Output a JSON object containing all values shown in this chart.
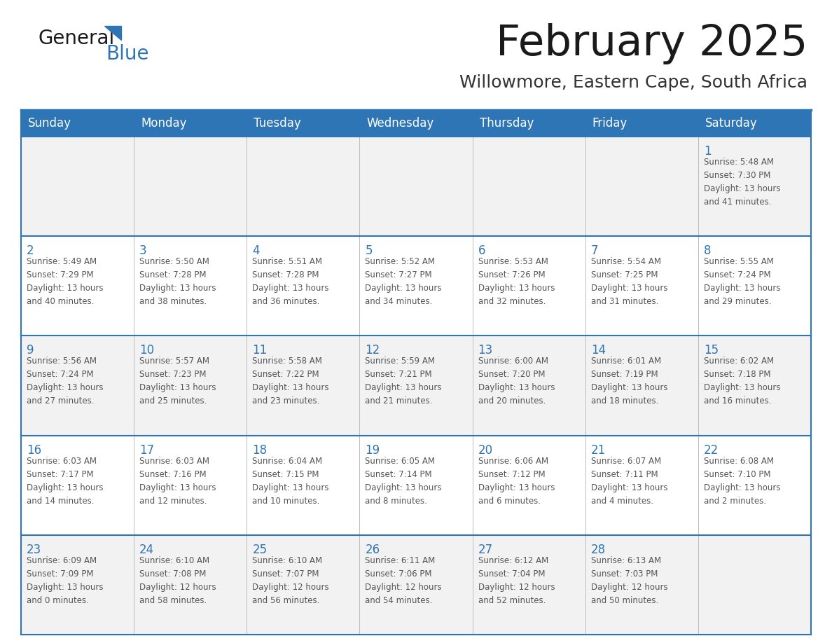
{
  "title": "February 2025",
  "subtitle": "Willowmore, Eastern Cape, South Africa",
  "header_bg_color": "#2E75B6",
  "header_text_color": "#FFFFFF",
  "cell_bg_even": "#F2F2F2",
  "cell_bg_odd": "#FFFFFF",
  "border_color": "#2E75B6",
  "day_headers": [
    "Sunday",
    "Monday",
    "Tuesday",
    "Wednesday",
    "Thursday",
    "Friday",
    "Saturday"
  ],
  "title_color": "#1a1a1a",
  "subtitle_color": "#333333",
  "cell_text_color": "#555555",
  "day_num_color": "#2E75B6",
  "logo_general_color": "#1a1a1a",
  "logo_blue_color": "#2E75B6",
  "logo_triangle_color": "#2E75B6",
  "weeks": [
    [
      {
        "day": null,
        "info": null
      },
      {
        "day": null,
        "info": null
      },
      {
        "day": null,
        "info": null
      },
      {
        "day": null,
        "info": null
      },
      {
        "day": null,
        "info": null
      },
      {
        "day": null,
        "info": null
      },
      {
        "day": 1,
        "info": "Sunrise: 5:48 AM\nSunset: 7:30 PM\nDaylight: 13 hours\nand 41 minutes."
      }
    ],
    [
      {
        "day": 2,
        "info": "Sunrise: 5:49 AM\nSunset: 7:29 PM\nDaylight: 13 hours\nand 40 minutes."
      },
      {
        "day": 3,
        "info": "Sunrise: 5:50 AM\nSunset: 7:28 PM\nDaylight: 13 hours\nand 38 minutes."
      },
      {
        "day": 4,
        "info": "Sunrise: 5:51 AM\nSunset: 7:28 PM\nDaylight: 13 hours\nand 36 minutes."
      },
      {
        "day": 5,
        "info": "Sunrise: 5:52 AM\nSunset: 7:27 PM\nDaylight: 13 hours\nand 34 minutes."
      },
      {
        "day": 6,
        "info": "Sunrise: 5:53 AM\nSunset: 7:26 PM\nDaylight: 13 hours\nand 32 minutes."
      },
      {
        "day": 7,
        "info": "Sunrise: 5:54 AM\nSunset: 7:25 PM\nDaylight: 13 hours\nand 31 minutes."
      },
      {
        "day": 8,
        "info": "Sunrise: 5:55 AM\nSunset: 7:24 PM\nDaylight: 13 hours\nand 29 minutes."
      }
    ],
    [
      {
        "day": 9,
        "info": "Sunrise: 5:56 AM\nSunset: 7:24 PM\nDaylight: 13 hours\nand 27 minutes."
      },
      {
        "day": 10,
        "info": "Sunrise: 5:57 AM\nSunset: 7:23 PM\nDaylight: 13 hours\nand 25 minutes."
      },
      {
        "day": 11,
        "info": "Sunrise: 5:58 AM\nSunset: 7:22 PM\nDaylight: 13 hours\nand 23 minutes."
      },
      {
        "day": 12,
        "info": "Sunrise: 5:59 AM\nSunset: 7:21 PM\nDaylight: 13 hours\nand 21 minutes."
      },
      {
        "day": 13,
        "info": "Sunrise: 6:00 AM\nSunset: 7:20 PM\nDaylight: 13 hours\nand 20 minutes."
      },
      {
        "day": 14,
        "info": "Sunrise: 6:01 AM\nSunset: 7:19 PM\nDaylight: 13 hours\nand 18 minutes."
      },
      {
        "day": 15,
        "info": "Sunrise: 6:02 AM\nSunset: 7:18 PM\nDaylight: 13 hours\nand 16 minutes."
      }
    ],
    [
      {
        "day": 16,
        "info": "Sunrise: 6:03 AM\nSunset: 7:17 PM\nDaylight: 13 hours\nand 14 minutes."
      },
      {
        "day": 17,
        "info": "Sunrise: 6:03 AM\nSunset: 7:16 PM\nDaylight: 13 hours\nand 12 minutes."
      },
      {
        "day": 18,
        "info": "Sunrise: 6:04 AM\nSunset: 7:15 PM\nDaylight: 13 hours\nand 10 minutes."
      },
      {
        "day": 19,
        "info": "Sunrise: 6:05 AM\nSunset: 7:14 PM\nDaylight: 13 hours\nand 8 minutes."
      },
      {
        "day": 20,
        "info": "Sunrise: 6:06 AM\nSunset: 7:12 PM\nDaylight: 13 hours\nand 6 minutes."
      },
      {
        "day": 21,
        "info": "Sunrise: 6:07 AM\nSunset: 7:11 PM\nDaylight: 13 hours\nand 4 minutes."
      },
      {
        "day": 22,
        "info": "Sunrise: 6:08 AM\nSunset: 7:10 PM\nDaylight: 13 hours\nand 2 minutes."
      }
    ],
    [
      {
        "day": 23,
        "info": "Sunrise: 6:09 AM\nSunset: 7:09 PM\nDaylight: 13 hours\nand 0 minutes."
      },
      {
        "day": 24,
        "info": "Sunrise: 6:10 AM\nSunset: 7:08 PM\nDaylight: 12 hours\nand 58 minutes."
      },
      {
        "day": 25,
        "info": "Sunrise: 6:10 AM\nSunset: 7:07 PM\nDaylight: 12 hours\nand 56 minutes."
      },
      {
        "day": 26,
        "info": "Sunrise: 6:11 AM\nSunset: 7:06 PM\nDaylight: 12 hours\nand 54 minutes."
      },
      {
        "day": 27,
        "info": "Sunrise: 6:12 AM\nSunset: 7:04 PM\nDaylight: 12 hours\nand 52 minutes."
      },
      {
        "day": 28,
        "info": "Sunrise: 6:13 AM\nSunset: 7:03 PM\nDaylight: 12 hours\nand 50 minutes."
      },
      {
        "day": null,
        "info": null
      }
    ]
  ]
}
